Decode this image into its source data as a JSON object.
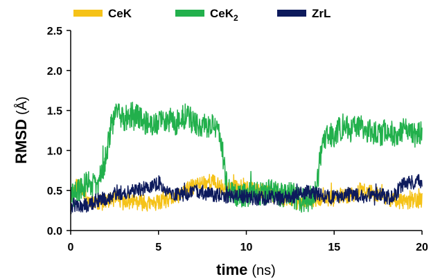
{
  "chart_data": {
    "type": "line",
    "xlabel": "time",
    "xunit": "(ns)",
    "ylabel": "RMSD",
    "yunit": "(Å)",
    "xlim": [
      0,
      20
    ],
    "ylim": [
      0.0,
      2.5
    ],
    "xticks": [
      "0",
      "5",
      "10",
      "15",
      "20"
    ],
    "yticks": [
      "0.0",
      "0.5",
      "1.0",
      "1.5",
      "2.0",
      "2.5"
    ],
    "grid": false,
    "legend_position": "top",
    "series": [
      {
        "name": "CeK",
        "color": "#F5C218",
        "stroke_order": 1,
        "points": [
          [
            0,
            0.45
          ],
          [
            0.5,
            0.6
          ],
          [
            1,
            0.38
          ],
          [
            1.5,
            0.35
          ],
          [
            2,
            0.35
          ],
          [
            2.5,
            0.4
          ],
          [
            3,
            0.35
          ],
          [
            3.5,
            0.37
          ],
          [
            4,
            0.35
          ],
          [
            4.5,
            0.33
          ],
          [
            5,
            0.35
          ],
          [
            5.5,
            0.37
          ],
          [
            6,
            0.42
          ],
          [
            6.5,
            0.5
          ],
          [
            7,
            0.55
          ],
          [
            7.5,
            0.6
          ],
          [
            8,
            0.62
          ],
          [
            8.5,
            0.55
          ],
          [
            9,
            0.5
          ],
          [
            9.5,
            0.55
          ],
          [
            10,
            0.52
          ],
          [
            10.5,
            0.5
          ],
          [
            11,
            0.48
          ],
          [
            11.5,
            0.45
          ],
          [
            12,
            0.4
          ],
          [
            12.5,
            0.4
          ],
          [
            13,
            0.35
          ],
          [
            13.5,
            0.38
          ],
          [
            14,
            0.4
          ],
          [
            14.5,
            0.4
          ],
          [
            15,
            0.4
          ],
          [
            15.5,
            0.42
          ],
          [
            16,
            0.45
          ],
          [
            16.5,
            0.5
          ],
          [
            17,
            0.48
          ],
          [
            17.5,
            0.45
          ],
          [
            18,
            0.4
          ],
          [
            18.5,
            0.38
          ],
          [
            19,
            0.35
          ],
          [
            19.5,
            0.38
          ],
          [
            20,
            0.38
          ]
        ],
        "noise": 0.1,
        "seed": 11
      },
      {
        "name": "CeK2",
        "name_main": "CeK",
        "name_sub": "2",
        "color": "#22B04C",
        "stroke_order": 2,
        "points": [
          [
            0,
            0.42
          ],
          [
            0.5,
            0.5
          ],
          [
            1,
            0.6
          ],
          [
            1.5,
            0.55
          ],
          [
            2,
            0.9
          ],
          [
            2.3,
            1.3
          ],
          [
            2.7,
            1.5
          ],
          [
            3,
            1.4
          ],
          [
            3.5,
            1.45
          ],
          [
            4,
            1.4
          ],
          [
            4.5,
            1.3
          ],
          [
            5,
            1.35
          ],
          [
            5.5,
            1.4
          ],
          [
            6,
            1.35
          ],
          [
            6.5,
            1.45
          ],
          [
            7,
            1.35
          ],
          [
            7.5,
            1.3
          ],
          [
            8,
            1.3
          ],
          [
            8.5,
            1.25
          ],
          [
            8.8,
            0.7
          ],
          [
            9,
            0.5
          ],
          [
            9.5,
            0.45
          ],
          [
            10,
            0.45
          ],
          [
            10.5,
            0.5
          ],
          [
            11,
            0.45
          ],
          [
            11.5,
            0.5
          ],
          [
            12,
            0.45
          ],
          [
            12.5,
            0.45
          ],
          [
            13,
            0.4
          ],
          [
            13.5,
            0.35
          ],
          [
            14,
            0.5
          ],
          [
            14.2,
            0.9
          ],
          [
            14.5,
            1.15
          ],
          [
            15,
            1.2
          ],
          [
            15.5,
            1.3
          ],
          [
            16,
            1.25
          ],
          [
            16.5,
            1.3
          ],
          [
            17,
            1.25
          ],
          [
            17.5,
            1.2
          ],
          [
            18,
            1.25
          ],
          [
            18.5,
            1.2
          ],
          [
            19,
            1.25
          ],
          [
            19.5,
            1.2
          ],
          [
            20,
            1.2
          ]
        ],
        "noise": 0.16,
        "seed": 29
      },
      {
        "name": "ZrL",
        "color": "#0D1A5C",
        "stroke_order": 3,
        "points": [
          [
            0,
            0.3
          ],
          [
            0.5,
            0.3
          ],
          [
            1,
            0.32
          ],
          [
            1.5,
            0.38
          ],
          [
            2,
            0.4
          ],
          [
            2.5,
            0.45
          ],
          [
            3,
            0.48
          ],
          [
            3.5,
            0.5
          ],
          [
            4,
            0.52
          ],
          [
            4.5,
            0.55
          ],
          [
            5,
            0.6
          ],
          [
            5.5,
            0.5
          ],
          [
            6,
            0.45
          ],
          [
            6.5,
            0.45
          ],
          [
            7,
            0.5
          ],
          [
            7.5,
            0.48
          ],
          [
            8,
            0.45
          ],
          [
            8.5,
            0.45
          ],
          [
            9,
            0.42
          ],
          [
            9.5,
            0.45
          ],
          [
            10,
            0.42
          ],
          [
            10.5,
            0.4
          ],
          [
            11,
            0.4
          ],
          [
            11.5,
            0.42
          ],
          [
            12,
            0.4
          ],
          [
            12.5,
            0.42
          ],
          [
            13,
            0.45
          ],
          [
            13.5,
            0.48
          ],
          [
            14,
            0.45
          ],
          [
            14.5,
            0.42
          ],
          [
            15,
            0.42
          ],
          [
            15.5,
            0.45
          ],
          [
            16,
            0.45
          ],
          [
            16.5,
            0.42
          ],
          [
            17,
            0.45
          ],
          [
            17.5,
            0.45
          ],
          [
            18,
            0.42
          ],
          [
            18.5,
            0.45
          ],
          [
            19,
            0.6
          ],
          [
            19.5,
            0.6
          ],
          [
            20,
            0.62
          ]
        ],
        "noise": 0.09,
        "seed": 47
      }
    ]
  }
}
